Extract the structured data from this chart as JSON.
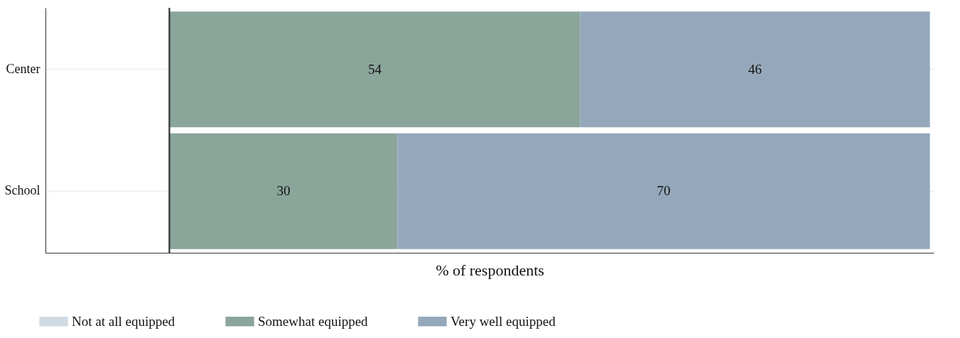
{
  "chart_data": {
    "type": "bar",
    "orientation": "horizontal",
    "stacked": true,
    "categories": [
      "Center",
      "School"
    ],
    "series": [
      {
        "name": "Not at all equipped",
        "color": "#d0dae3",
        "values": [
          0,
          0
        ],
        "value_labels": [
          null,
          null
        ]
      },
      {
        "name": "Somewhat equipped",
        "color": "#8aa59a",
        "values": [
          54,
          30
        ],
        "value_labels": [
          "54",
          "30"
        ]
      },
      {
        "name": "Very well equipped",
        "color": "#95a8bb",
        "values": [
          46,
          70
        ],
        "value_labels": [
          "46",
          "70"
        ]
      }
    ],
    "xlabel": "% of respondents",
    "xlim": [
      -16.3,
      100.5
    ],
    "tick_labels": "y",
    "grid": "y",
    "legend": "bottom",
    "ref_lines": [
      {
        "axis": "x",
        "value": 0,
        "label": null,
        "color": "#333333"
      }
    ]
  }
}
